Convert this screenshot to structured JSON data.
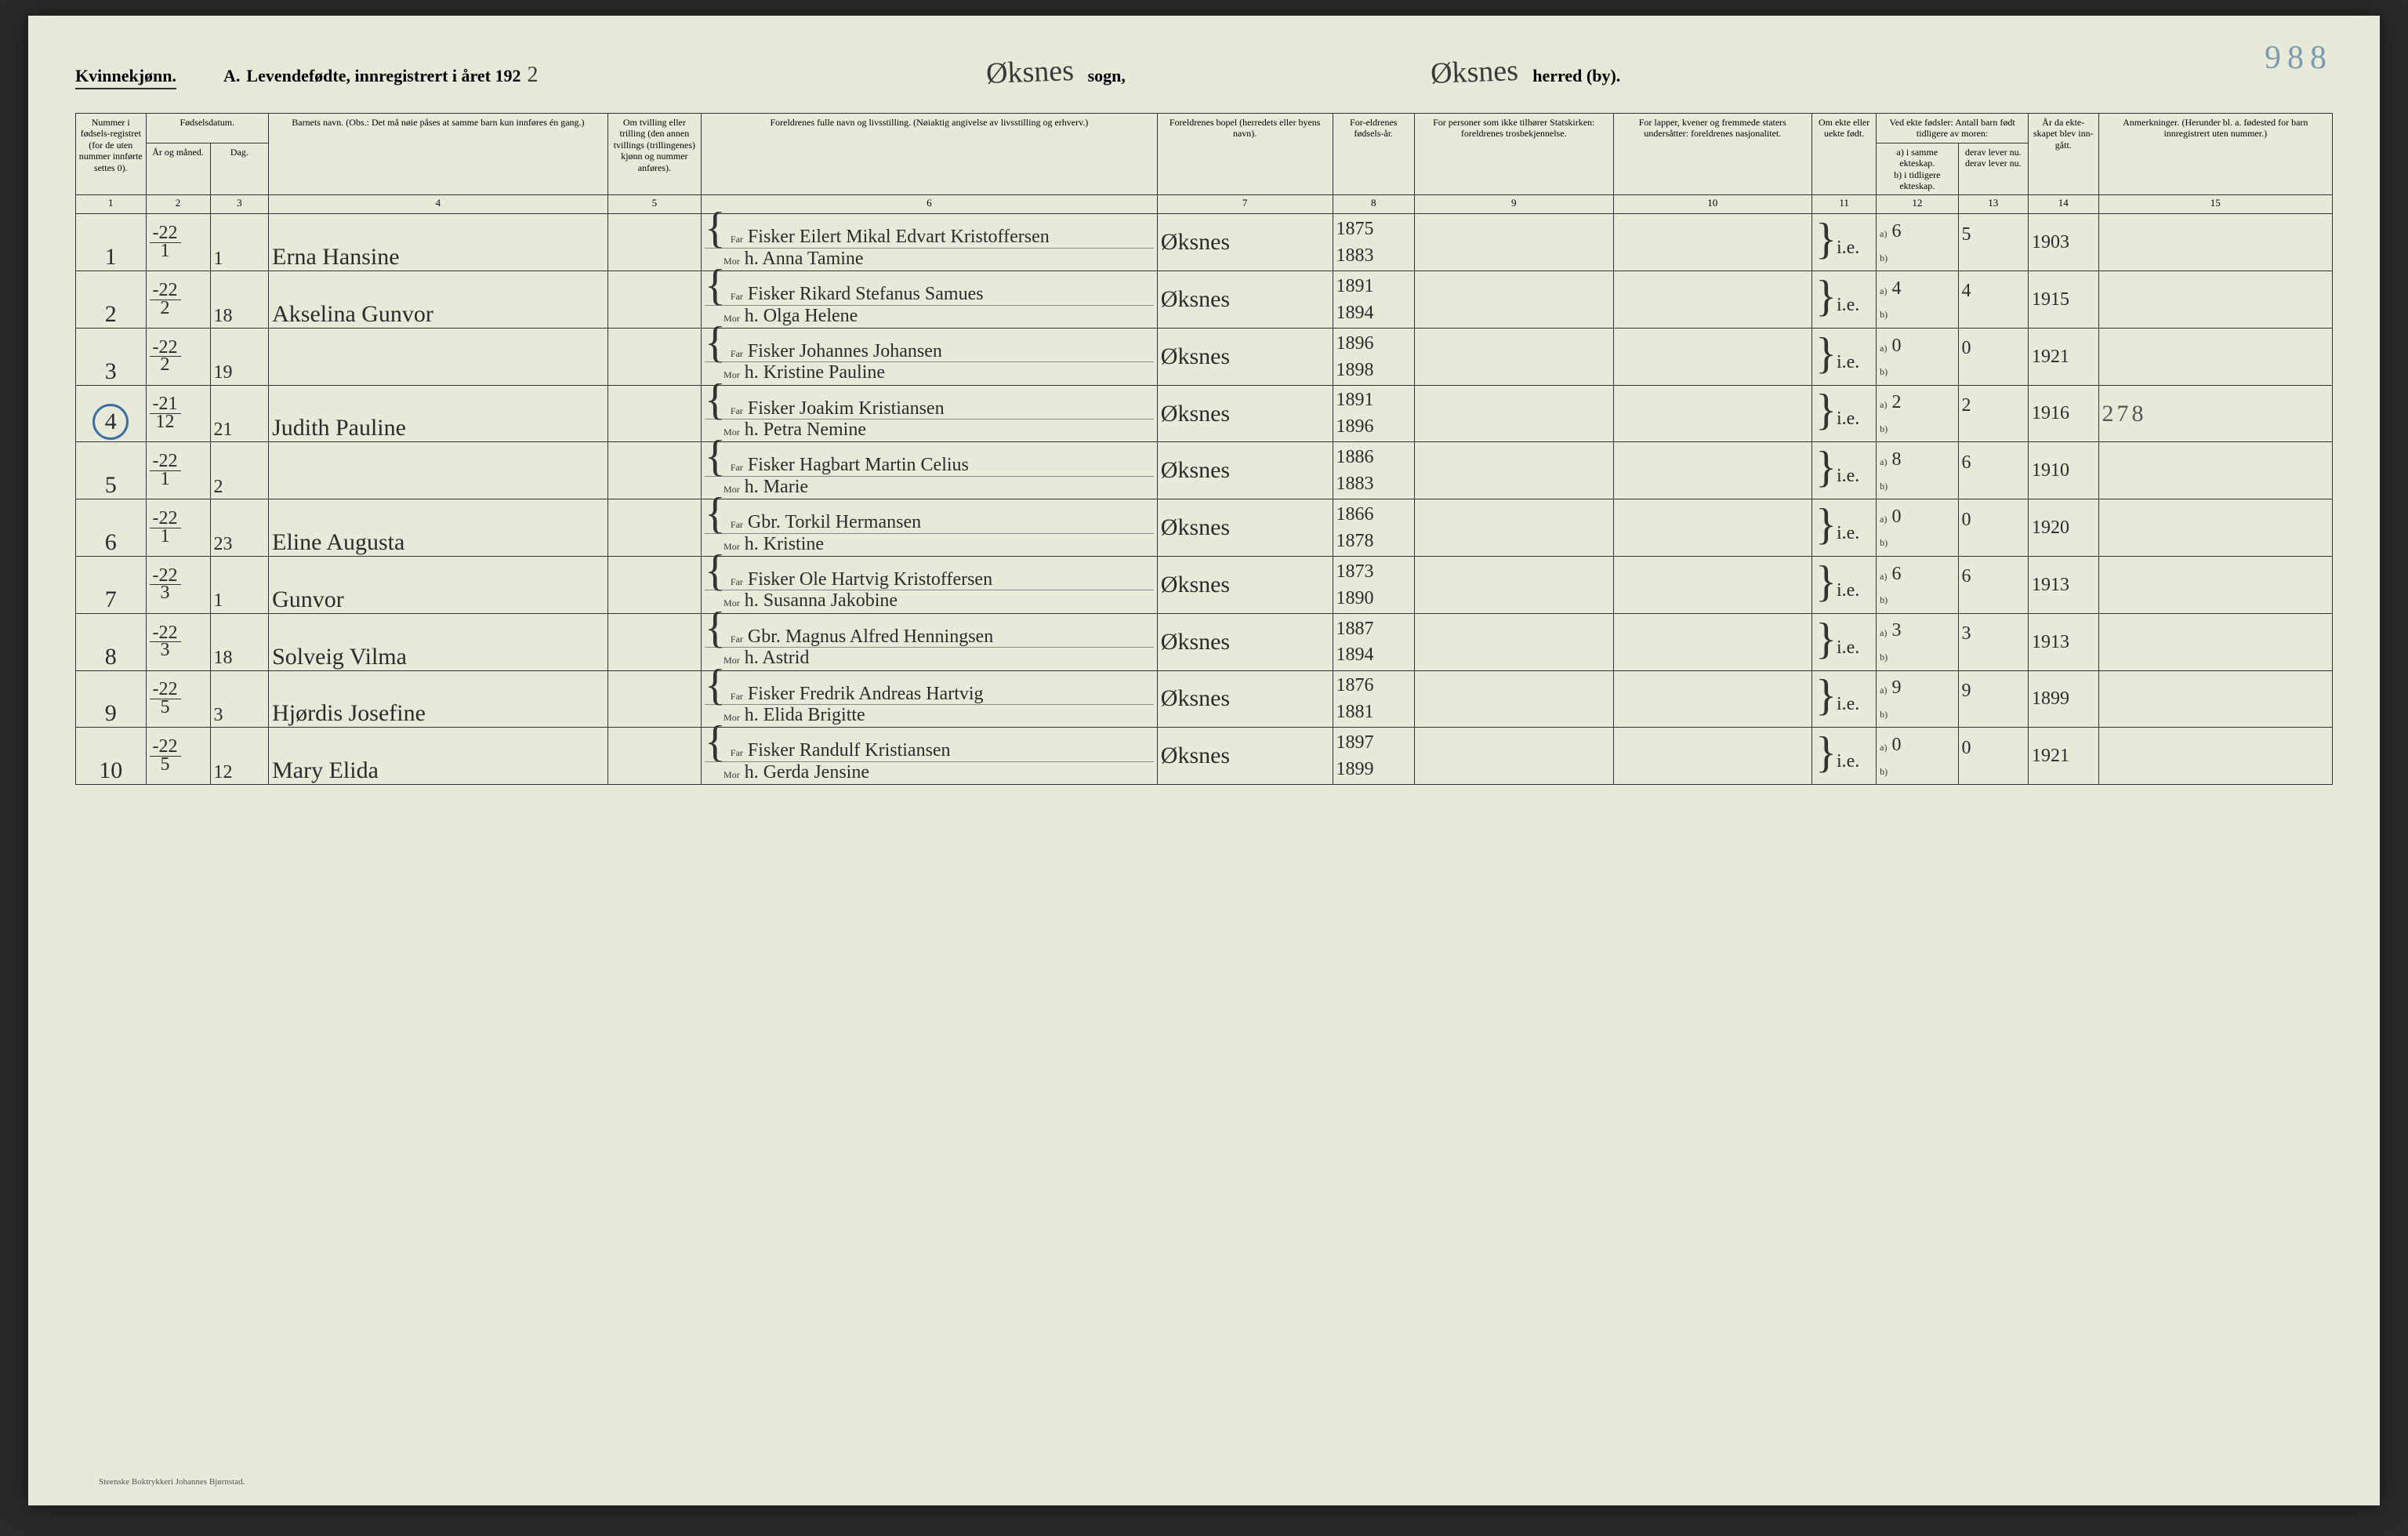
{
  "header": {
    "gender": "Kvinnekjønn.",
    "title_prefix": "A.",
    "title_main": "Levendefødte, innregistrert i året 192",
    "year_suffix": "2",
    "sogn_label": "sogn,",
    "sogn_value": "Øksnes",
    "herred_label": "herred (by).",
    "herred_value": "Øksnes",
    "page_number": "988"
  },
  "columns": {
    "c1": "Nummer i fødsels-registret (for de uten nummer innførte settes 0).",
    "c2_top": "Fødselsdatum.",
    "c2a": "År og måned.",
    "c2b": "Dag.",
    "c4": "Barnets navn.\n(Obs.: Det må nøie påses at samme barn kun innføres én gang.)",
    "c5": "Om tvilling eller trilling (den annen tvillings (trillingenes) kjønn og nummer anføres).",
    "c6": "Foreldrenes fulle navn og livsstilling.\n(Nøiaktig angivelse av livsstilling og erhverv.)",
    "c7": "Foreldrenes bopel\n(herredets eller byens navn).",
    "c8": "For-eldrenes fødsels-år.",
    "c9": "For personer som ikke tilhører Statskirken: foreldrenes trosbekjennelse.",
    "c10": "For lapper, kvener og fremmede staters undersåtter: foreldrenes nasjonalitet.",
    "c11": "Om ekte eller uekte født.",
    "c12_top": "Ved ekte fødsler: Antall barn født tidligere av moren:",
    "c12a": "a) i samme ekteskap.",
    "c12b": "b) i tidligere ekteskap.",
    "c13_top": "",
    "c13a": "derav lever nu.",
    "c13b": "derav lever nu.",
    "c14": "År da ekte-skapet blev inn-gått.",
    "c15": "Anmerkninger.\n(Herunder bl. a. fødested for barn innregistrert uten nummer.)",
    "far": "Far",
    "mor": "Mor",
    "a": "a)",
    "b": "b)"
  },
  "colnums": [
    "1",
    "2",
    "3",
    "4",
    "5",
    "6",
    "7",
    "8",
    "9",
    "10",
    "11",
    "12",
    "13",
    "14",
    "15"
  ],
  "rows": [
    {
      "num": "1",
      "year_month_top": "-22",
      "year_month_bot": "1",
      "day": "1",
      "child": "Erna Hansine",
      "far": "Fisker Eilert Mikal Edvart Kristoffersen",
      "mor": "h. Anna Tamine",
      "bopel": "Øksnes",
      "fy_far": "1875",
      "fy_mor": "1883",
      "ekte": "i.e.",
      "a12": "6",
      "a13": "5",
      "marriage": "1903",
      "note": ""
    },
    {
      "num": "2",
      "year_month_top": "-22",
      "year_month_bot": "2",
      "day": "18",
      "child": "Akselina Gunvor",
      "far": "Fisker Rikard Stefanus Samues",
      "mor": "h. Olga Helene",
      "bopel": "Øksnes",
      "fy_far": "1891",
      "fy_mor": "1894",
      "ekte": "i.e.",
      "a12": "4",
      "a13": "4",
      "marriage": "1915",
      "note": ""
    },
    {
      "num": "3",
      "year_month_top": "-22",
      "year_month_bot": "2",
      "day": "19",
      "child": "",
      "far": "Fisker Johannes Johansen",
      "mor": "h. Kristine Pauline",
      "bopel": "Øksnes",
      "fy_far": "1896",
      "fy_mor": "1898",
      "ekte": "i.e.",
      "a12": "0",
      "a13": "0",
      "marriage": "1921",
      "note": ""
    },
    {
      "num": "4",
      "circled": true,
      "year_month_top": "-21",
      "year_month_bot": "12",
      "day": "21",
      "child": "Judith Pauline",
      "far": "Fisker Joakim Kristiansen",
      "mor": "h. Petra Nemine",
      "bopel": "Øksnes",
      "fy_far": "1891",
      "fy_mor": "1896",
      "ekte": "i.e.",
      "a12": "2",
      "a13": "2",
      "marriage": "1916",
      "note": "278"
    },
    {
      "num": "5",
      "year_month_top": "-22",
      "year_month_bot": "1",
      "day": "2",
      "child": "",
      "far": "Fisker Hagbart Martin Celius",
      "mor": "h. Marie",
      "bopel": "Øksnes",
      "fy_far": "1886",
      "fy_mor": "1883",
      "ekte": "i.e.",
      "a12": "8",
      "a13": "6",
      "marriage": "1910",
      "note": ""
    },
    {
      "num": "6",
      "year_month_top": "-22",
      "year_month_bot": "1",
      "day": "23",
      "child": "Eline Augusta",
      "far": "Gbr. Torkil Hermansen",
      "mor": "h. Kristine",
      "bopel": "Øksnes",
      "fy_far": "1866",
      "fy_mor": "1878",
      "ekte": "i.e.",
      "a12": "0",
      "a13": "0",
      "marriage": "1920",
      "note": ""
    },
    {
      "num": "7",
      "year_month_top": "-22",
      "year_month_bot": "3",
      "day": "1",
      "child": "Gunvor",
      "far": "Fisker Ole Hartvig Kristoffersen",
      "mor": "h. Susanna Jakobine",
      "bopel": "Øksnes",
      "fy_far": "1873",
      "fy_mor": "1890",
      "ekte": "i.e.",
      "a12": "6",
      "a13": "6",
      "marriage": "1913",
      "note": ""
    },
    {
      "num": "8",
      "year_month_top": "-22",
      "year_month_bot": "3",
      "day": "18",
      "child": "Solveig Vilma",
      "far": "Gbr. Magnus Alfred Henningsen",
      "mor": "h. Astrid",
      "bopel": "Øksnes",
      "fy_far": "1887",
      "fy_mor": "1894",
      "ekte": "i.e.",
      "a12": "3",
      "a13": "3",
      "marriage": "1913",
      "note": ""
    },
    {
      "num": "9",
      "year_month_top": "-22",
      "year_month_bot": "5",
      "day": "3",
      "child": "Hjørdis Josefine",
      "far": "Fisker Fredrik Andreas Hartvig",
      "mor": "h. Elida Brigitte",
      "bopel": "Øksnes",
      "fy_far": "1876",
      "fy_mor": "1881",
      "ekte": "i.e.",
      "a12": "9",
      "a13": "9",
      "marriage": "1899",
      "note": ""
    },
    {
      "num": "10",
      "year_month_top": "-22",
      "year_month_bot": "5",
      "day": "12",
      "child": "Mary Elida",
      "far": "Fisker Randulf Kristiansen",
      "mor": "h. Gerda Jensine",
      "bopel": "Øksnes",
      "fy_far": "1897",
      "fy_mor": "1899",
      "ekte": "i.e.",
      "a12": "0",
      "a13": "0",
      "marriage": "1921",
      "note": ""
    }
  ],
  "footer": "Steenske Boktrykkeri Johannes Bjørnstad."
}
